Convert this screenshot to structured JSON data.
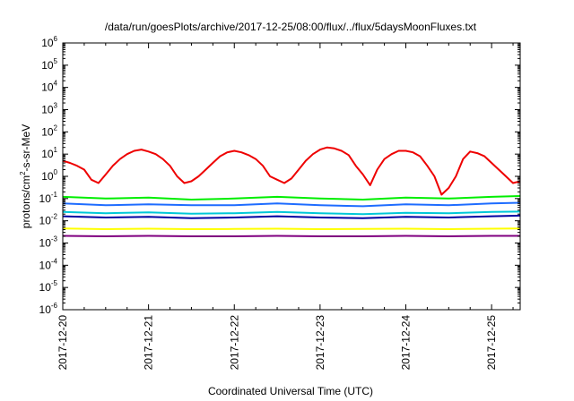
{
  "chart_data": {
    "type": "line",
    "title": "/data/run/goesPlots/archive/2017-12-25/08:00/flux/../flux/5daysMoonFluxes.txt",
    "xlabel": "Coordinated Universal Time (UTC)",
    "ylabel": {
      "base": "protons/cm",
      "sup": "2",
      "rest": "-s-sr-MeV"
    },
    "y_scale": "log",
    "ylim": [
      1e-06,
      1000000.0
    ],
    "y_ticks": [
      {
        "base": "10",
        "exp": "6",
        "value": 1000000.0
      },
      {
        "base": "10",
        "exp": "5",
        "value": 100000.0
      },
      {
        "base": "10",
        "exp": "4",
        "value": 10000.0
      },
      {
        "base": "10",
        "exp": "3",
        "value": 1000.0
      },
      {
        "base": "10",
        "exp": "2",
        "value": 100.0
      },
      {
        "base": "10",
        "exp": "1",
        "value": 10.0
      },
      {
        "base": "10",
        "exp": "0",
        "value": 1.0
      },
      {
        "base": "10",
        "exp": "-1",
        "value": 0.1
      },
      {
        "base": "10",
        "exp": "-2",
        "value": 0.01
      },
      {
        "base": "10",
        "exp": "-3",
        "value": 0.001
      },
      {
        "base": "10",
        "exp": "-4",
        "value": 0.0001
      },
      {
        "base": "10",
        "exp": "-5",
        "value": 1e-05
      },
      {
        "base": "10",
        "exp": "-6",
        "value": 1e-06
      }
    ],
    "xlim": [
      "2017-12-20T00:00",
      "2017-12-25T08:00"
    ],
    "x_ticks": [
      "2017-12-20",
      "2017-12-21",
      "2017-12-22",
      "2017-12-23",
      "2017-12-24",
      "2017-12-25"
    ],
    "grid": false,
    "series": [
      {
        "color": "#ee0000",
        "x": [
          "2017-12-20T00:00",
          "2017-12-20T02:00",
          "2017-12-20T04:00",
          "2017-12-20T06:00",
          "2017-12-20T08:00",
          "2017-12-20T10:00",
          "2017-12-20T12:00",
          "2017-12-20T14:00",
          "2017-12-20T16:00",
          "2017-12-20T18:00",
          "2017-12-20T20:00",
          "2017-12-20T22:00",
          "2017-12-21T00:00",
          "2017-12-21T02:00",
          "2017-12-21T04:00",
          "2017-12-21T06:00",
          "2017-12-21T08:00",
          "2017-12-21T10:00",
          "2017-12-21T12:00",
          "2017-12-21T14:00",
          "2017-12-21T16:00",
          "2017-12-21T18:00",
          "2017-12-21T20:00",
          "2017-12-21T22:00",
          "2017-12-22T00:00",
          "2017-12-22T02:00",
          "2017-12-22T04:00",
          "2017-12-22T06:00",
          "2017-12-22T08:00",
          "2017-12-22T10:00",
          "2017-12-22T12:00",
          "2017-12-22T14:00",
          "2017-12-22T16:00",
          "2017-12-22T18:00",
          "2017-12-22T20:00",
          "2017-12-22T22:00",
          "2017-12-23T00:00",
          "2017-12-23T02:00",
          "2017-12-23T04:00",
          "2017-12-23T06:00",
          "2017-12-23T08:00",
          "2017-12-23T10:00",
          "2017-12-23T12:00",
          "2017-12-23T14:00",
          "2017-12-23T16:00",
          "2017-12-23T18:00",
          "2017-12-23T20:00",
          "2017-12-23T22:00",
          "2017-12-24T00:00",
          "2017-12-24T02:00",
          "2017-12-24T04:00",
          "2017-12-24T06:00",
          "2017-12-24T08:00",
          "2017-12-24T10:00",
          "2017-12-24T12:00",
          "2017-12-24T14:00",
          "2017-12-24T16:00",
          "2017-12-24T18:00",
          "2017-12-24T20:00",
          "2017-12-24T22:00",
          "2017-12-25T00:00",
          "2017-12-25T02:00",
          "2017-12-25T04:00",
          "2017-12-25T06:00",
          "2017-12-25T08:00"
        ],
        "values": [
          5,
          4,
          3,
          2,
          0.7,
          0.5,
          1.2,
          3,
          6,
          10,
          14,
          16,
          13,
          10,
          6,
          3,
          1,
          0.5,
          0.6,
          1,
          2,
          4,
          8,
          12,
          14,
          12,
          9,
          6,
          3,
          1,
          0.7,
          0.5,
          0.8,
          2,
          5,
          10,
          16,
          20,
          18,
          14,
          9,
          3,
          1.2,
          0.4,
          2,
          6,
          10,
          14,
          14,
          12,
          8,
          3,
          1,
          0.15,
          0.3,
          1,
          6,
          13,
          11,
          8,
          4,
          2,
          1,
          0.5,
          0.6
        ]
      },
      {
        "color": "#00ee00",
        "x": [
          "2017-12-20T00:00",
          "2017-12-20T12:00",
          "2017-12-21T00:00",
          "2017-12-21T12:00",
          "2017-12-22T00:00",
          "2017-12-22T12:00",
          "2017-12-23T00:00",
          "2017-12-23T12:00",
          "2017-12-24T00:00",
          "2017-12-24T12:00",
          "2017-12-25T00:00",
          "2017-12-25T08:00"
        ],
        "values": [
          0.12,
          0.1,
          0.11,
          0.09,
          0.1,
          0.12,
          0.1,
          0.09,
          0.11,
          0.1,
          0.12,
          0.13
        ]
      },
      {
        "color": "#1e6cff",
        "x": [
          "2017-12-20T00:00",
          "2017-12-20T12:00",
          "2017-12-21T00:00",
          "2017-12-21T12:00",
          "2017-12-22T00:00",
          "2017-12-22T12:00",
          "2017-12-23T00:00",
          "2017-12-23T12:00",
          "2017-12-24T00:00",
          "2017-12-24T12:00",
          "2017-12-25T00:00",
          "2017-12-25T08:00"
        ],
        "values": [
          0.06,
          0.05,
          0.055,
          0.05,
          0.05,
          0.06,
          0.05,
          0.045,
          0.055,
          0.05,
          0.06,
          0.065
        ]
      },
      {
        "color": "#00c8d8",
        "x": [
          "2017-12-20T00:00",
          "2017-12-20T12:00",
          "2017-12-21T00:00",
          "2017-12-21T12:00",
          "2017-12-22T00:00",
          "2017-12-22T12:00",
          "2017-12-23T00:00",
          "2017-12-23T12:00",
          "2017-12-24T00:00",
          "2017-12-24T12:00",
          "2017-12-25T00:00",
          "2017-12-25T08:00"
        ],
        "values": [
          0.025,
          0.022,
          0.024,
          0.021,
          0.022,
          0.025,
          0.022,
          0.02,
          0.023,
          0.022,
          0.025,
          0.026
        ]
      },
      {
        "color": "#0000a0",
        "x": [
          "2017-12-20T00:00",
          "2017-12-20T12:00",
          "2017-12-21T00:00",
          "2017-12-21T12:00",
          "2017-12-22T00:00",
          "2017-12-22T12:00",
          "2017-12-23T00:00",
          "2017-12-23T12:00",
          "2017-12-24T00:00",
          "2017-12-24T12:00",
          "2017-12-25T00:00",
          "2017-12-25T08:00"
        ],
        "values": [
          0.016,
          0.014,
          0.015,
          0.013,
          0.014,
          0.016,
          0.014,
          0.013,
          0.015,
          0.014,
          0.016,
          0.017
        ]
      },
      {
        "color": "#ffff00",
        "x": [
          "2017-12-20T00:00",
          "2017-12-20T12:00",
          "2017-12-21T00:00",
          "2017-12-21T12:00",
          "2017-12-22T00:00",
          "2017-12-22T12:00",
          "2017-12-23T00:00",
          "2017-12-23T12:00",
          "2017-12-24T00:00",
          "2017-12-24T12:00",
          "2017-12-25T00:00",
          "2017-12-25T08:00"
        ],
        "values": [
          0.0045,
          0.0042,
          0.0044,
          0.0042,
          0.0043,
          0.0044,
          0.0042,
          0.0043,
          0.0044,
          0.0042,
          0.0044,
          0.0045
        ]
      },
      {
        "color": "#800080",
        "x": [
          "2017-12-20T00:00",
          "2017-12-20T12:00",
          "2017-12-21T00:00",
          "2017-12-21T12:00",
          "2017-12-22T00:00",
          "2017-12-22T12:00",
          "2017-12-23T00:00",
          "2017-12-23T12:00",
          "2017-12-24T00:00",
          "2017-12-24T12:00",
          "2017-12-25T00:00",
          "2017-12-25T08:00"
        ],
        "values": [
          0.0021,
          0.002,
          0.0021,
          0.002,
          0.002,
          0.0021,
          0.002,
          0.002,
          0.0021,
          0.002,
          0.0021,
          0.0021
        ]
      }
    ]
  }
}
